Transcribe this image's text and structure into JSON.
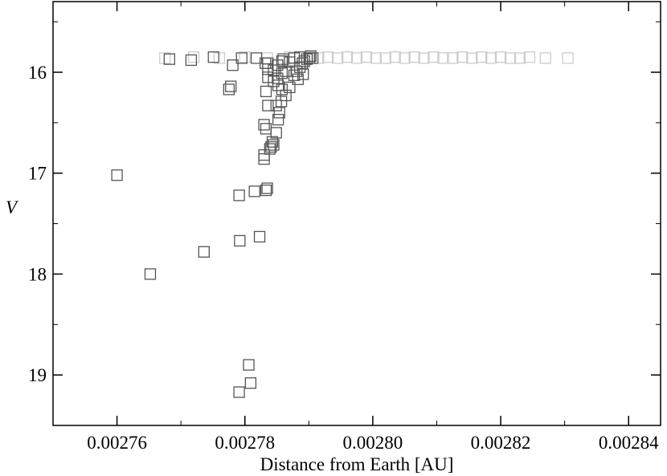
{
  "chart_data": {
    "type": "scatter",
    "xlabel": "Distance from Earth [AU]",
    "ylabel": "V",
    "xlim": [
      0.00275,
      0.002845
    ],
    "ylim": [
      19.5,
      15.3
    ],
    "xticks": [
      0.00276,
      0.00278,
      {
        "value": 0.0028,
        "label": "0.00280"
      },
      0.00282,
      0.00284
    ],
    "yticks": [
      16,
      17,
      18,
      19
    ],
    "xminorticks": [
      0.00275,
      0.00277,
      0.00279,
      0.00281,
      0.00283
    ],
    "yminorticks": [
      15.5,
      16.5,
      17.5,
      18.5
    ],
    "marker": "square",
    "series": [
      {
        "color": "#cccccc",
        "x": [
          0.0027675,
          0.002772,
          0.002776,
          0.00278,
          0.0027835,
          0.002787,
          0.00279,
          0.0027915,
          0.002793,
          0.0027945,
          0.002796,
          0.0027975,
          0.002799,
          0.0028005,
          0.002802,
          0.0028035,
          0.002805,
          0.0028065,
          0.002808,
          0.0028095,
          0.002811,
          0.0028125,
          0.002814,
          0.0028155,
          0.002817,
          0.0028185,
          0.00282,
          0.0028215,
          0.002823,
          0.0028245,
          0.002827,
          0.0028305
        ],
        "y": [
          15.86,
          15.85,
          15.86,
          15.85,
          15.86,
          15.85,
          15.85,
          15.86,
          15.85,
          15.86,
          15.85,
          15.86,
          15.85,
          15.86,
          15.86,
          15.85,
          15.86,
          15.85,
          15.86,
          15.85,
          15.86,
          15.86,
          15.85,
          15.86,
          15.85,
          15.86,
          15.85,
          15.86,
          15.86,
          15.85,
          15.86,
          15.86
        ]
      },
      {
        "color": "#555555",
        "x": [
          0.00276,
          0.0027652,
          0.0027736,
          0.0027791,
          0.0027792,
          0.0027823,
          0.0027815,
          0.0027833,
          0.0027835,
          0.0027806,
          0.0027809,
          0.0027791,
          0.0027682,
          0.0027716,
          0.0027751,
          0.0027781,
          0.0027775,
          0.0027778,
          0.0027795,
          0.0027818,
          0.002783,
          0.002783,
          0.0027841,
          0.0027845,
          0.0027849,
          0.0027852,
          0.0027854,
          0.0027849,
          0.0027857,
          0.0027836,
          0.002783,
          0.0027833,
          0.0027858,
          0.0027864,
          0.002787,
          0.0027833,
          0.0027836,
          0.0027845,
          0.0027851,
          0.0027858,
          0.0027864,
          0.0027877,
          0.0027881,
          0.0027886,
          0.002789,
          0.0027893,
          0.0027897,
          0.0027901,
          0.0027858,
          0.002786,
          0.0027836,
          0.0027836,
          0.0027845,
          0.0027832,
          0.0027851,
          0.002787,
          0.0027903,
          0.0027906,
          0.0027886,
          0.0027877,
          0.0027891,
          0.0027883,
          0.0027852,
          0.0027843,
          0.0027839
        ],
        "y": [
          17.02,
          18.0,
          17.78,
          17.22,
          17.67,
          17.63,
          17.18,
          17.17,
          17.15,
          18.9,
          19.08,
          19.17,
          15.87,
          15.88,
          15.85,
          15.93,
          16.17,
          16.14,
          15.86,
          15.86,
          16.82,
          16.86,
          16.74,
          16.72,
          16.6,
          16.47,
          16.4,
          16.33,
          16.29,
          16.33,
          16.52,
          16.56,
          16.17,
          16.23,
          16.15,
          16.19,
          16.05,
          16.09,
          16.06,
          16.01,
          15.99,
          16.03,
          15.99,
          15.95,
          15.91,
          15.89,
          15.87,
          15.86,
          15.89,
          15.87,
          15.91,
          15.97,
          15.98,
          15.91,
          15.93,
          15.9,
          15.84,
          15.86,
          15.85,
          15.86,
          16.02,
          16.07,
          16.13,
          16.69,
          16.76
        ]
      }
    ]
  }
}
